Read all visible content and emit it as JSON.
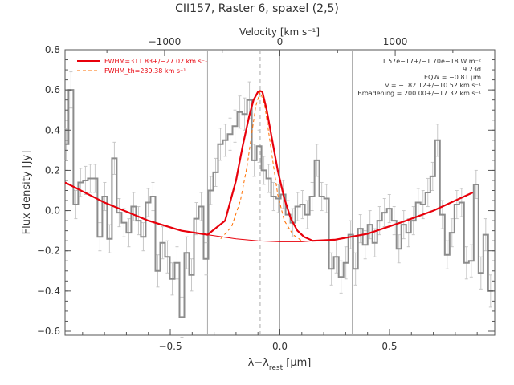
{
  "chart_data": {
    "type": "line",
    "title": "CII157, Raster 6, spaxel (2,5)",
    "xlabel": "λ−λrest [μm]",
    "ylabel": "Flux density [Jy]",
    "top_axis_label": "Velocity [km s⁻¹]",
    "xlim": [
      -0.98,
      0.98
    ],
    "ylim": [
      -0.62,
      0.8
    ],
    "x_ticks": [
      {
        "value": -0.5,
        "label": "−0.5"
      },
      {
        "value": 0.0,
        "label": "0.0"
      },
      {
        "value": 0.5,
        "label": "0.5"
      }
    ],
    "y_ticks": [
      {
        "value": -0.6,
        "label": "−0.6"
      },
      {
        "value": -0.4,
        "label": "−0.4"
      },
      {
        "value": -0.2,
        "label": "−0.2"
      },
      {
        "value": 0.0,
        "label": "0.0"
      },
      {
        "value": 0.2,
        "label": "0.2"
      },
      {
        "value": 0.4,
        "label": "0.4"
      },
      {
        "value": 0.6,
        "label": "0.6"
      },
      {
        "value": 0.8,
        "label": "0.8"
      }
    ],
    "top_ticks": [
      {
        "value": -1000,
        "x": -0.526,
        "label": "−1000"
      },
      {
        "value": 0,
        "x": 0.0,
        "label": "0"
      },
      {
        "value": 1000,
        "x": 0.526,
        "label": "1000"
      }
    ],
    "vertical_lines": [
      -0.33,
      0.0,
      0.33
    ],
    "line_center": -0.09,
    "legend": [
      {
        "label": "FWHM=311.83+/−27.02 km s⁻¹",
        "style": "solid"
      },
      {
        "label": "FWHM_th=239.38 km s⁻¹",
        "style": "dashed"
      }
    ],
    "annotations": [
      "1.57e−17+/−1.70e−18 W m⁻²",
      "9.23σ",
      "EQW = −0.81 μm",
      "v = −182.12+/−10.52 km s⁻¹",
      "Broadening = 200.00+/−17.32 km s⁻¹"
    ],
    "colors": {
      "data": "#8c8c8c",
      "errorbars": "#c8c8c8",
      "fit": "#e8000b",
      "fit_thermal": "#ff6f00",
      "axes": "#555555",
      "text": "#333333",
      "grid_lines": "#aaaaaa"
    },
    "series": [
      {
        "name": "spectrum",
        "style": "histogram",
        "x": [
          -0.975,
          -0.953,
          -0.931,
          -0.909,
          -0.887,
          -0.865,
          -0.843,
          -0.821,
          -0.799,
          -0.777,
          -0.755,
          -0.733,
          -0.711,
          -0.689,
          -0.667,
          -0.645,
          -0.623,
          -0.601,
          -0.579,
          -0.557,
          -0.535,
          -0.513,
          -0.491,
          -0.469,
          -0.447,
          -0.425,
          -0.403,
          -0.381,
          -0.359,
          -0.337,
          -0.315,
          -0.293,
          -0.271,
          -0.249,
          -0.227,
          -0.205,
          -0.183,
          -0.161,
          -0.139,
          -0.117,
          -0.095,
          -0.073,
          -0.051,
          -0.029,
          -0.007,
          0.015,
          0.037,
          0.059,
          0.081,
          0.103,
          0.125,
          0.147,
          0.169,
          0.191,
          0.213,
          0.235,
          0.257,
          0.279,
          0.301,
          0.323,
          0.345,
          0.367,
          0.389,
          0.411,
          0.433,
          0.455,
          0.477,
          0.499,
          0.521,
          0.543,
          0.565,
          0.587,
          0.609,
          0.631,
          0.653,
          0.675,
          0.697,
          0.719,
          0.741,
          0.763,
          0.785,
          0.807,
          0.829,
          0.851,
          0.873,
          0.895,
          0.917,
          0.939,
          0.961
        ],
        "y": [
          0.33,
          0.6,
          0.03,
          0.14,
          0.15,
          0.16,
          0.16,
          -0.13,
          0.07,
          -0.14,
          0.26,
          -0.01,
          -0.06,
          -0.11,
          0.02,
          -0.05,
          -0.13,
          0.04,
          0.07,
          -0.3,
          -0.16,
          -0.23,
          -0.34,
          -0.26,
          -0.53,
          -0.21,
          -0.32,
          -0.04,
          0.02,
          -0.24,
          0.1,
          0.19,
          0.33,
          0.35,
          0.38,
          0.42,
          0.49,
          0.48,
          0.55,
          0.25,
          0.32,
          0.2,
          0.16,
          0.07,
          0.06,
          0.08,
          -0.02,
          -0.06,
          0.02,
          0.03,
          -0.02,
          0.07,
          0.25,
          0.07,
          0.06,
          -0.29,
          -0.23,
          -0.33,
          -0.26,
          -0.12,
          -0.29,
          -0.09,
          -0.17,
          -0.07,
          -0.16,
          -0.05,
          -0.01,
          0.01,
          -0.05,
          -0.19,
          -0.07,
          -0.11,
          -0.05,
          0.04,
          0.03,
          0.09,
          0.17,
          0.35,
          -0.02,
          -0.22,
          -0.11,
          0.03,
          0.04,
          -0.26,
          -0.25,
          0.13,
          -0.31,
          -0.12,
          -0.4
        ],
        "yerr": [
          0.08,
          0.09,
          0.07,
          0.07,
          0.07,
          0.07,
          0.07,
          0.07,
          0.07,
          0.07,
          0.08,
          0.07,
          0.07,
          0.07,
          0.07,
          0.07,
          0.07,
          0.07,
          0.07,
          0.08,
          0.08,
          0.08,
          0.08,
          0.08,
          0.1,
          0.08,
          0.08,
          0.08,
          0.07,
          0.08,
          0.07,
          0.07,
          0.08,
          0.08,
          0.08,
          0.08,
          0.08,
          0.08,
          0.09,
          0.08,
          0.08,
          0.07,
          0.07,
          0.07,
          0.07,
          0.07,
          0.07,
          0.07,
          0.07,
          0.07,
          0.07,
          0.07,
          0.08,
          0.07,
          0.07,
          0.08,
          0.08,
          0.08,
          0.08,
          0.07,
          0.08,
          0.07,
          0.07,
          0.07,
          0.07,
          0.07,
          0.07,
          0.07,
          0.07,
          0.07,
          0.07,
          0.07,
          0.07,
          0.07,
          0.07,
          0.07,
          0.07,
          0.08,
          0.07,
          0.07,
          0.07,
          0.07,
          0.07,
          0.08,
          0.08,
          0.07,
          0.08,
          0.08,
          0.08
        ]
      },
      {
        "name": "fit",
        "x": [
          -0.98,
          -0.8,
          -0.6,
          -0.45,
          -0.33,
          -0.25,
          -0.2,
          -0.17,
          -0.14,
          -0.12,
          -0.1,
          -0.09,
          -0.08,
          -0.06,
          -0.04,
          -0.01,
          0.02,
          0.05,
          0.08,
          0.11,
          0.15,
          0.25,
          0.4,
          0.55,
          0.7,
          0.88
        ],
        "y": [
          0.14,
          0.04,
          -0.05,
          -0.1,
          -0.12,
          -0.05,
          0.15,
          0.32,
          0.47,
          0.55,
          0.59,
          0.595,
          0.59,
          0.5,
          0.38,
          0.2,
          0.06,
          -0.04,
          -0.1,
          -0.13,
          -0.15,
          -0.145,
          -0.115,
          -0.06,
          0.0,
          0.09
        ]
      },
      {
        "name": "continuum",
        "x": [
          -0.33,
          -0.2,
          -0.1,
          0.0,
          0.1,
          0.15
        ],
        "y": [
          -0.12,
          -0.14,
          -0.15,
          -0.155,
          -0.155,
          -0.15
        ]
      },
      {
        "name": "thermal",
        "x": [
          -0.27,
          -0.22,
          -0.18,
          -0.15,
          -0.13,
          -0.11,
          -0.09,
          -0.07,
          -0.05,
          -0.03,
          -0.01,
          0.02,
          0.06,
          0.1
        ],
        "y": [
          -0.14,
          -0.08,
          0.05,
          0.22,
          0.37,
          0.52,
          0.59,
          0.53,
          0.38,
          0.23,
          0.08,
          -0.05,
          -0.12,
          -0.15
        ]
      }
    ]
  }
}
